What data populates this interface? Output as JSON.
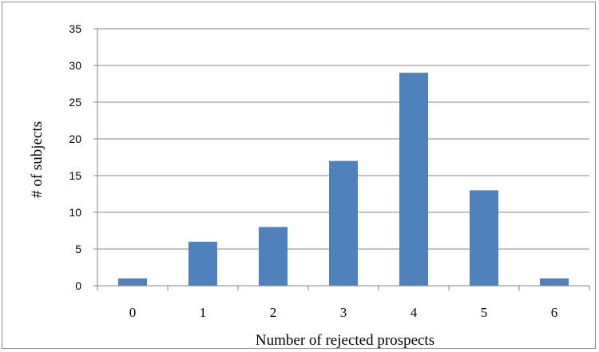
{
  "chart_data": {
    "type": "bar",
    "title": "",
    "xlabel": "Number of rejected prospects",
    "ylabel": "# of subjects",
    "categories": [
      "0",
      "1",
      "2",
      "3",
      "4",
      "5",
      "6"
    ],
    "values": [
      1,
      6,
      8,
      17,
      29,
      13,
      1
    ],
    "ylim": [
      0,
      35
    ],
    "yticks": [
      "0",
      "5",
      "10",
      "15",
      "20",
      "25",
      "30",
      "35"
    ],
    "grid": true,
    "legend": "none",
    "bar_color": "#4f81bd",
    "grid_color": "#868686"
  }
}
